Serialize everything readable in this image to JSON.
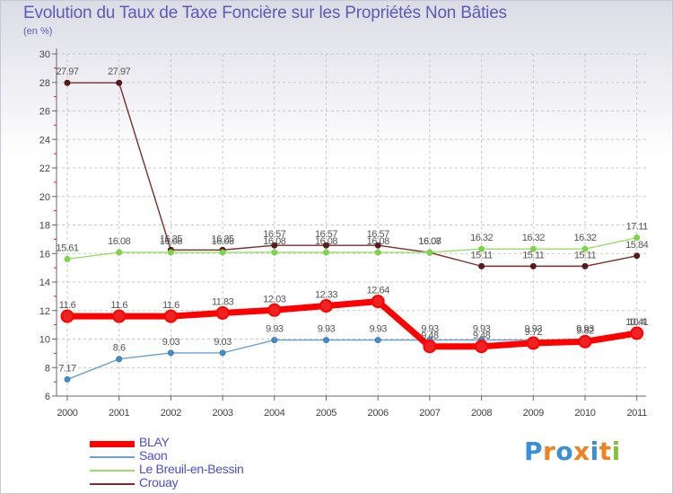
{
  "chart_data": {
    "type": "line",
    "title": "Evolution du Taux de Taxe Foncière sur les Propriétés Non Bâties",
    "subtitle": "(en %)",
    "categories": [
      "2000",
      "2001",
      "2002",
      "2003",
      "2004",
      "2005",
      "2006",
      "2007",
      "2008",
      "2009",
      "2010",
      "2011"
    ],
    "ylim": [
      6,
      30
    ],
    "yticks": [
      "6",
      "8",
      "10",
      "12",
      "14",
      "16",
      "18",
      "20",
      "22",
      "24",
      "26",
      "28",
      "30"
    ],
    "grid": true,
    "legend_position": "bottom-left",
    "series": [
      {
        "name": "BLAY",
        "color": "#ff0000",
        "values": [
          11.6,
          11.6,
          11.6,
          11.83,
          12.03,
          12.33,
          12.64,
          9.48,
          9.48,
          9.72,
          9.82,
          10.41
        ],
        "labels": [
          "11.6",
          "11.6",
          "11.6",
          "11.83",
          "12.03",
          "12.33",
          "12.64",
          "9.48",
          "9.48",
          "9.72",
          "9.82",
          "10.41"
        ]
      },
      {
        "name": "Saon",
        "color": "#6aa0cc",
        "values": [
          7.17,
          8.6,
          9.03,
          9.03,
          9.93,
          9.93,
          9.93,
          9.93,
          9.93,
          9.93,
          9.93,
          10.4
        ],
        "labels": [
          "7.17",
          "8.6",
          "9.03",
          "9.03",
          "9.93",
          "9.93",
          "9.93",
          "9.93",
          "9.93",
          "9.93",
          "9.93",
          "10.4"
        ]
      },
      {
        "name": "Le Breuil-en-Bessin",
        "color": "#99dd66",
        "values": [
          15.61,
          16.08,
          16.08,
          16.08,
          16.08,
          16.08,
          16.08,
          16.08,
          16.32,
          16.32,
          16.32,
          17.11
        ],
        "labels": [
          "15.61",
          "16.08",
          "16.08",
          "16.08",
          "16.08",
          "16.08",
          "16.08",
          "16.08",
          "16.32",
          "16.32",
          "16.32",
          "17.11"
        ]
      },
      {
        "name": "Crouay",
        "color": "#7a2e2e",
        "values": [
          27.97,
          27.97,
          16.25,
          16.25,
          16.57,
          16.57,
          16.57,
          16.07,
          15.11,
          15.11,
          15.11,
          15.84
        ],
        "labels": [
          "27.97",
          "27.97",
          "16.25",
          "16.25",
          "16.57",
          "16.57",
          "16.57",
          "16.07",
          "15.11",
          "15.11",
          "15.11",
          "15.84"
        ]
      }
    ]
  },
  "logo": {
    "letters": [
      "P",
      "r",
      "o",
      "x",
      "i",
      "t",
      "i"
    ],
    "colors": [
      "#3a8fd6",
      "#f08020",
      "#3a8fd6",
      "#f08020",
      "#3a8fd6",
      "#f08020",
      "#8ac040"
    ]
  }
}
